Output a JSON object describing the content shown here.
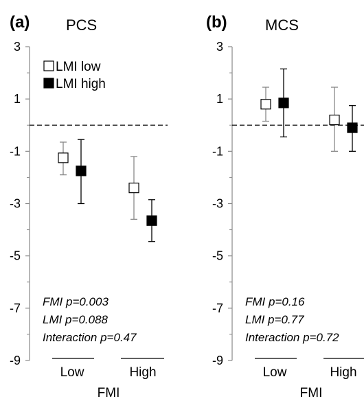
{
  "chart_data": [
    {
      "type": "scatter",
      "panel_label": "(a)",
      "title": "PCS",
      "xlabel": "FMI",
      "categories": [
        "Low",
        "High"
      ],
      "ylim": [
        -9,
        3
      ],
      "yticks": [
        3,
        1,
        -1,
        -3,
        -5,
        -7,
        -9
      ],
      "reference_line": 0,
      "grid": false,
      "legend_position": "top-left",
      "series": [
        {
          "name": "LMI low",
          "marker": "open-square",
          "color": "#888888",
          "values": [
            -1.25,
            -2.4
          ],
          "lower": [
            -1.9,
            -3.6
          ],
          "upper": [
            -0.65,
            -1.2
          ]
        },
        {
          "name": "LMI high",
          "marker": "filled-square",
          "color": "#000000",
          "values": [
            -1.75,
            -3.65
          ],
          "lower": [
            -3.0,
            -4.45
          ],
          "upper": [
            -0.55,
            -2.85
          ]
        }
      ],
      "annotations": [
        "FMI p=0.003",
        "LMI p=0.088",
        "Interaction p=0.47"
      ]
    },
    {
      "type": "scatter",
      "panel_label": "(b)",
      "title": "MCS",
      "xlabel": "FMI",
      "categories": [
        "Low",
        "High"
      ],
      "ylim": [
        -9,
        3
      ],
      "yticks": [
        3,
        1,
        -1,
        -3,
        -5,
        -7,
        -9
      ],
      "reference_line": 0,
      "grid": false,
      "series": [
        {
          "name": "LMI low",
          "marker": "open-square",
          "color": "#888888",
          "values": [
            0.8,
            0.2
          ],
          "lower": [
            0.15,
            -1.0
          ],
          "upper": [
            1.45,
            1.45
          ]
        },
        {
          "name": "LMI high",
          "marker": "filled-square",
          "color": "#000000",
          "values": [
            0.85,
            -0.1
          ],
          "lower": [
            -0.45,
            -1.0
          ],
          "upper": [
            2.15,
            0.75
          ]
        }
      ],
      "annotations": [
        "FMI p=0.16",
        "LMI p=0.77",
        "Interaction p=0.72"
      ]
    }
  ]
}
